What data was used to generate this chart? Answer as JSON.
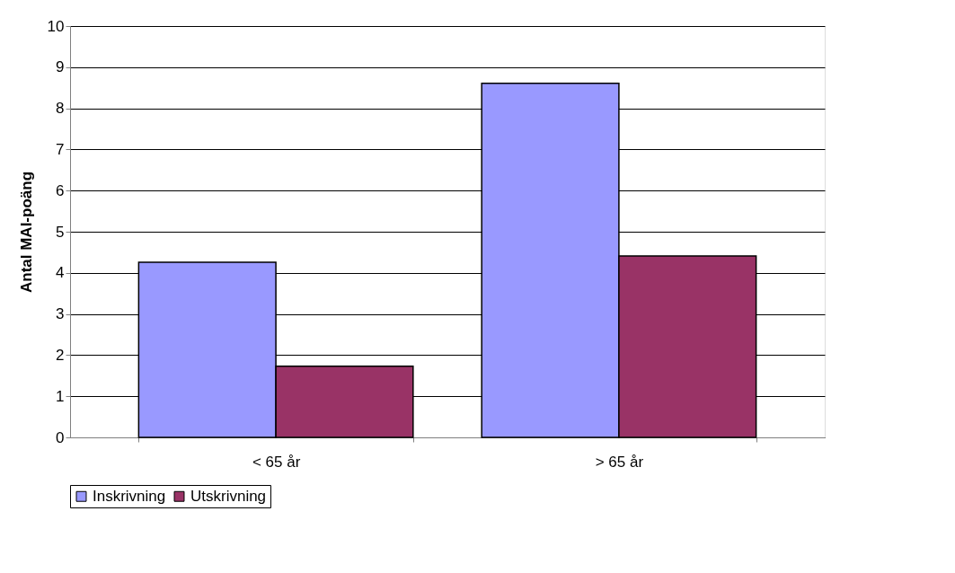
{
  "chart_data": {
    "type": "bar",
    "ylabel": "Antal MAI-poäng",
    "categories": [
      "< 65 år",
      "> 65 år"
    ],
    "series": [
      {
        "name": "Inskrivning",
        "color": "#9999ff",
        "values": [
          4.26,
          8.61
        ]
      },
      {
        "name": "Utskrivning",
        "color": "#993366",
        "values": [
          1.73,
          4.41
        ]
      }
    ],
    "ylim": [
      0,
      10
    ],
    "yticks": [
      0,
      1,
      2,
      3,
      4,
      5,
      6,
      7,
      8,
      9,
      10
    ],
    "grid": "y",
    "legend": "bottom"
  }
}
